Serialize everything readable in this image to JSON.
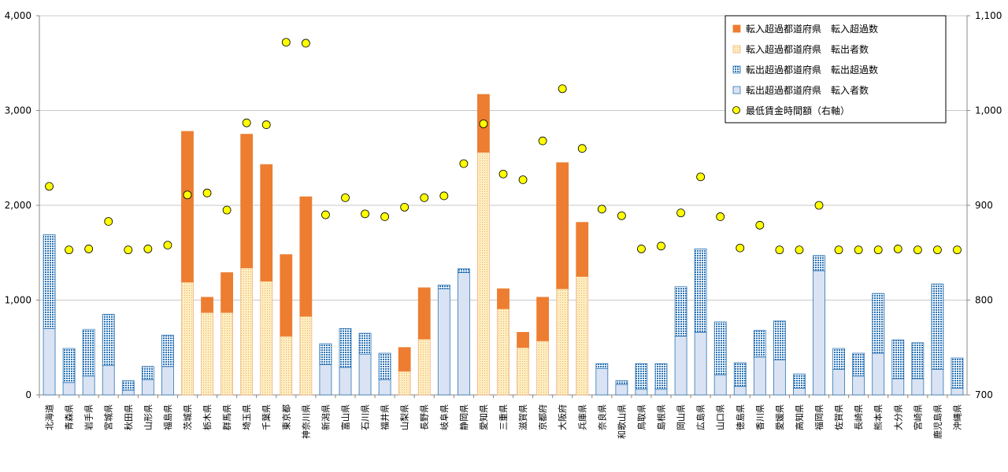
{
  "chart_data": {
    "type": "bar",
    "stacked": true,
    "y_left": {
      "ylim": [
        0,
        4000
      ],
      "ticks": [
        "0",
        "1,000",
        "2,000",
        "3,000",
        "4,000"
      ]
    },
    "y_right": {
      "ylim": [
        700,
        1100
      ],
      "ticks": [
        "700",
        "800",
        "900",
        "1,000",
        "1,100"
      ]
    },
    "grid": true,
    "legend_position": "top-right",
    "categories": [
      "北海道",
      "青森県",
      "岩手県",
      "宮城県",
      "秋田県",
      "山形県",
      "福島県",
      "茨城県",
      "栃木県",
      "群馬県",
      "埼玉県",
      "千葉県",
      "東京都",
      "神奈川県",
      "新潟県",
      "富山県",
      "石川県",
      "福井県",
      "山梨県",
      "長野県",
      "岐阜県",
      "静岡県",
      "愛知県",
      "三重県",
      "滋賀県",
      "京都府",
      "大阪府",
      "兵庫県",
      "奈良県",
      "和歌山県",
      "鳥取県",
      "島根県",
      "岡山県",
      "広島県",
      "山口県",
      "徳島県",
      "香川県",
      "愛媛県",
      "高知県",
      "福岡県",
      "佐賀県",
      "長崎県",
      "熊本県",
      "大分県",
      "宮崎県",
      "鹿児島県",
      "沖縄県"
    ],
    "group": [
      "out",
      "out",
      "out",
      "out",
      "out",
      "out",
      "out",
      "in",
      "in",
      "in",
      "in",
      "in",
      "in",
      "in",
      "out",
      "out",
      "out",
      "out",
      "in",
      "in",
      "out",
      "out",
      "in",
      "in",
      "in",
      "in",
      "in",
      "in",
      "out",
      "out",
      "out",
      "out",
      "out",
      "out",
      "out",
      "out",
      "out",
      "out",
      "out",
      "out",
      "out",
      "out",
      "out",
      "out",
      "out",
      "out",
      "out"
    ],
    "series": [
      {
        "name": "転入超過都道府県　転入超過数",
        "key": "in_excess",
        "color": "#ed7d31"
      },
      {
        "name": "転入超過都道府県　転出者数",
        "key": "in_base",
        "color": "#fde9a8"
      },
      {
        "name": "転出超過都道府県　転出超過数",
        "key": "out_excess",
        "color": "#2e75b6"
      },
      {
        "name": "転出超過都道府県　転入者数",
        "key": "out_base",
        "color": "#dae3f3"
      },
      {
        "name": "最低賃金時間額（右軸）",
        "key": "wage",
        "color": "#ffff00"
      }
    ],
    "base_values": [
      700,
      130,
      200,
      310,
      50,
      160,
      300,
      1190,
      870,
      870,
      1340,
      1200,
      620,
      830,
      320,
      290,
      430,
      160,
      250,
      590,
      1120,
      1290,
      2560,
      910,
      500,
      570,
      1120,
      1250,
      280,
      110,
      60,
      60,
      620,
      660,
      210,
      90,
      400,
      370,
      70,
      1310,
      270,
      200,
      440,
      170,
      170,
      270,
      70
    ],
    "excess_values": [
      990,
      360,
      490,
      540,
      100,
      140,
      330,
      1590,
      160,
      420,
      1410,
      1230,
      860,
      1260,
      220,
      410,
      220,
      280,
      250,
      540,
      40,
      40,
      610,
      210,
      160,
      460,
      1330,
      570,
      50,
      40,
      270,
      270,
      520,
      880,
      560,
      250,
      280,
      410,
      150,
      160,
      220,
      240,
      630,
      410,
      380,
      900,
      320
    ],
    "wage_values": [
      920,
      853,
      854,
      883,
      853,
      854,
      858,
      911,
      913,
      895,
      987,
      985,
      1072,
      1071,
      890,
      908,
      891,
      888,
      898,
      908,
      910,
      944,
      986,
      933,
      927,
      968,
      1023,
      960,
      896,
      889,
      854,
      857,
      892,
      930,
      888,
      855,
      879,
      853,
      853,
      900,
      853,
      853,
      853,
      854,
      853,
      853,
      853
    ]
  }
}
